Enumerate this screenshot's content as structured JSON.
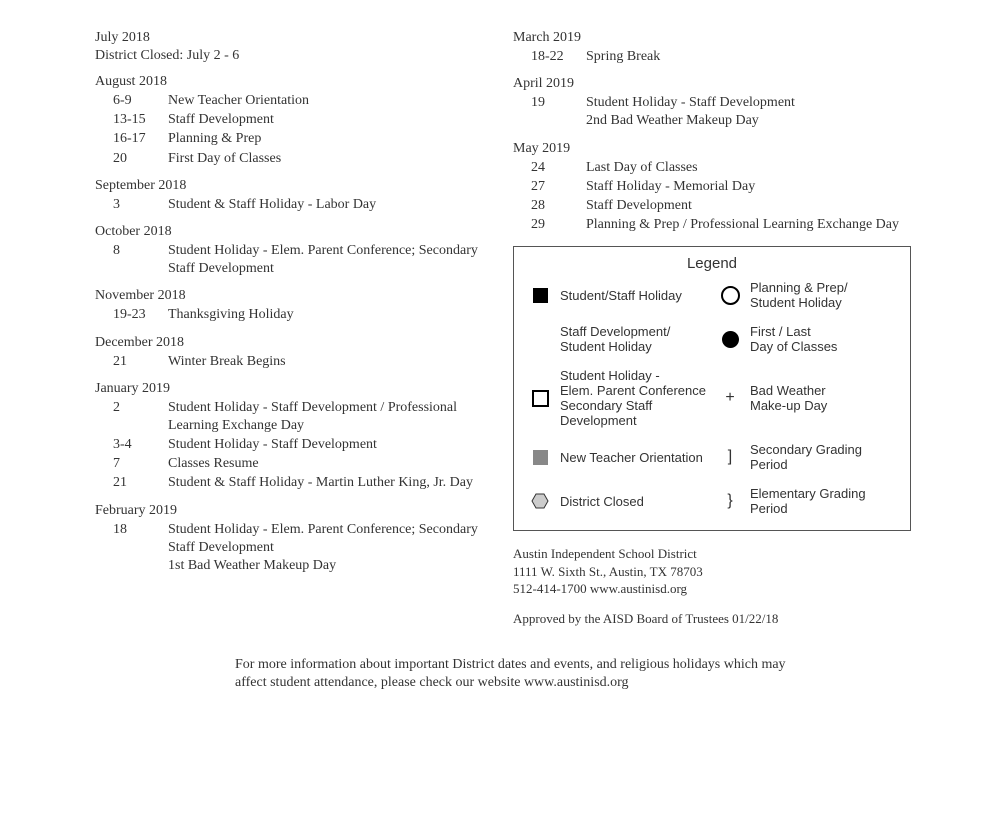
{
  "left": [
    {
      "title": "July 2018",
      "subtitle": "District Closed: July 2 - 6",
      "events": []
    },
    {
      "title": "August 2018",
      "events": [
        {
          "date": "6-9",
          "desc": "New Teacher Orientation"
        },
        {
          "date": "13-15",
          "desc": "Staff Development"
        },
        {
          "date": "16-17",
          "desc": "Planning & Prep"
        },
        {
          "date": "20",
          "desc": "First Day of Classes"
        }
      ]
    },
    {
      "title": "September 2018",
      "events": [
        {
          "date": "3",
          "desc": "Student & Staff Holiday - Labor Day"
        }
      ]
    },
    {
      "title": "October 2018",
      "events": [
        {
          "date": "8",
          "desc": "Student Holiday - Elem. Parent Conference; Secondary Staff Development"
        }
      ]
    },
    {
      "title": "November 2018",
      "events": [
        {
          "date": "19-23",
          "desc": "Thanksgiving Holiday"
        }
      ]
    },
    {
      "title": "December 2018",
      "events": [
        {
          "date": "21",
          "desc": "Winter Break Begins"
        }
      ]
    },
    {
      "title": "January 2019",
      "events": [
        {
          "date": "2",
          "desc": "Student Holiday - Staff Development / Professional Learning Exchange Day"
        },
        {
          "date": "3-4",
          "desc": "Student Holiday - Staff Development"
        },
        {
          "date": "7",
          "desc": "Classes Resume"
        },
        {
          "date": "21",
          "desc": "Student & Staff Holiday - Martin Luther King, Jr. Day"
        }
      ]
    },
    {
      "title": "February 2019",
      "events": [
        {
          "date": "18",
          "desc": "Student Holiday - Elem. Parent Conference; Secondary Staff Development\n1st Bad Weather Makeup Day"
        }
      ]
    }
  ],
  "right": [
    {
      "title": "March 2019",
      "events": [
        {
          "date": "18-22",
          "desc": "Spring Break"
        }
      ]
    },
    {
      "title": "April 2019",
      "events": [
        {
          "date": "19",
          "desc": "Student Holiday - Staff Development\n2nd Bad Weather Makeup Day"
        }
      ]
    },
    {
      "title": "May 2019",
      "events": [
        {
          "date": "24",
          "desc": "Last Day of Classes"
        },
        {
          "date": "27",
          "desc": "Staff Holiday - Memorial Day"
        },
        {
          "date": "28",
          "desc": "Staff Development"
        },
        {
          "date": "29",
          "desc": "Planning & Prep / Professional Learning Exchange Day"
        }
      ]
    }
  ],
  "legend": {
    "title": "Legend",
    "items": [
      {
        "sym": "sq-black",
        "label": "Student/Staff Holiday"
      },
      {
        "sym": "circ-open",
        "label": "Planning & Prep/\nStudent Holiday"
      },
      {
        "sym": "blank",
        "label": "Staff Development/\nStudent Holiday"
      },
      {
        "sym": "circ-fill",
        "label": "First / Last\nDay of Classes"
      },
      {
        "sym": "sq-open",
        "label": "Student Holiday -\nElem. Parent Conference\nSecondary Staff Development"
      },
      {
        "sym": "plus",
        "label": "Bad Weather\nMake-up Day"
      },
      {
        "sym": "sq-gray",
        "label": "New Teacher Orientation"
      },
      {
        "sym": "brack",
        "label": "Secondary Grading Period"
      },
      {
        "sym": "hex",
        "label": "District Closed"
      },
      {
        "sym": "curly",
        "label": "Elementary Grading Period"
      }
    ]
  },
  "district": {
    "name": "Austin Independent School District",
    "address": "1111 W. Sixth St., Austin, TX 78703",
    "contact": "512-414-1700  www.austinisd.org",
    "approved": "Approved by the AISD Board of Trustees 01/22/18"
  },
  "footer": "For more information about important District dates and events, and religious holidays which may affect student attendance, please check our website www.austinisd.org"
}
